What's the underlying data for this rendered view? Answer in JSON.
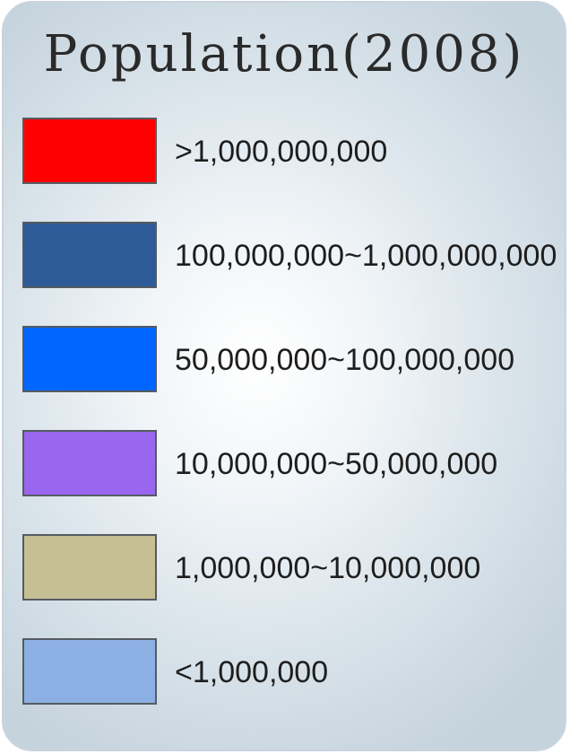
{
  "legend": {
    "title": "Population(2008)",
    "items": [
      {
        "label": ">1,000,000,000",
        "color": "#ff0000"
      },
      {
        "label": "100,000,000~1,000,000,000",
        "color": "#2f5a98"
      },
      {
        "label": "50,000,000~100,000,000",
        "color": "#0066ff"
      },
      {
        "label": "10,000,000~50,000,000",
        "color": "#9966f0"
      },
      {
        "label": "1,000,000~10,000,000",
        "color": "#c6bf94"
      },
      {
        "label": "<1,000,000",
        "color": "#8db0e4"
      }
    ]
  }
}
